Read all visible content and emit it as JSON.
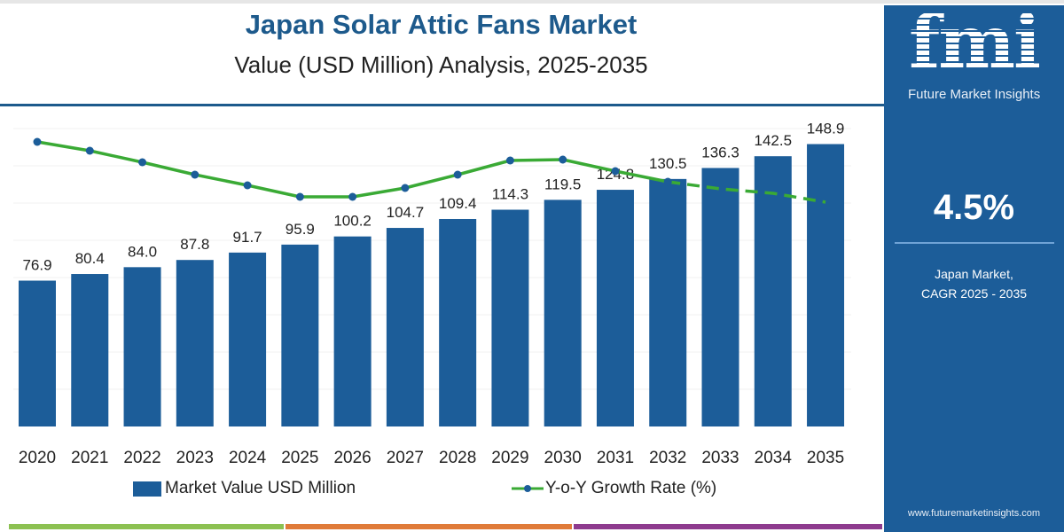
{
  "header": {
    "title": "Japan Solar Attic Fans Market",
    "subtitle": "Value (USD Million) Analysis, 2025-2035"
  },
  "chart_data": {
    "type": "bar",
    "title": "Japan Solar Attic Fans Market",
    "subtitle": "Value (USD Million) Analysis, 2025-2035",
    "categories": [
      "2020",
      "2021",
      "2022",
      "2023",
      "2024",
      "2025",
      "2026",
      "2027",
      "2028",
      "2029",
      "2030",
      "2031",
      "2032",
      "2033",
      "2034",
      "2035"
    ],
    "series": [
      {
        "name": "Market Value USD Million",
        "type": "bar",
        "color": "#1c5d99",
        "values": [
          76.9,
          80.4,
          84.0,
          87.8,
          91.7,
          95.9,
          100.2,
          104.7,
          109.4,
          114.3,
          119.5,
          124.8,
          130.5,
          136.3,
          142.5,
          148.9
        ],
        "labels": [
          "76.9",
          "80.4",
          "84.0",
          "87.8",
          "91.7",
          "95.9",
          "100.2",
          "104.7",
          "109.4",
          "114.3",
          "119.5",
          "124.8",
          "130.5",
          "136.3",
          "142.5",
          "148.9"
        ]
      },
      {
        "name": "Y-o-Y Growth Rate (%)",
        "type": "line",
        "color": "#3aaa35",
        "marker_color": "#1c5d99",
        "note_unlabeled_axis": true,
        "values": [
          5.0,
          4.9,
          4.77,
          4.63,
          4.51,
          4.38,
          4.38,
          4.48,
          4.63,
          4.79,
          4.8,
          4.67,
          4.55,
          4.47,
          4.42,
          4.32
        ],
        "dashed_from": "2032"
      }
    ],
    "ylim": [
      0,
      160
    ],
    "grid": true,
    "legend": "bottom"
  },
  "legend": {
    "bar_label": "Market Value USD Million",
    "line_label": "Y-o-Y Growth Rate (%)"
  },
  "panel": {
    "logo": "fmi",
    "logo_sub": "Future Market Insights",
    "cagr": "4.5%",
    "label_line1": "Japan Market,",
    "label_line2": "CAGR 2025 - 2035",
    "url": "www.futuremarketinsights.com"
  },
  "colors": {
    "brand": "#1c5d99",
    "line": "#3aaa35",
    "strip": [
      "#8cc152",
      "#e07b39",
      "#8e3b8e"
    ]
  }
}
